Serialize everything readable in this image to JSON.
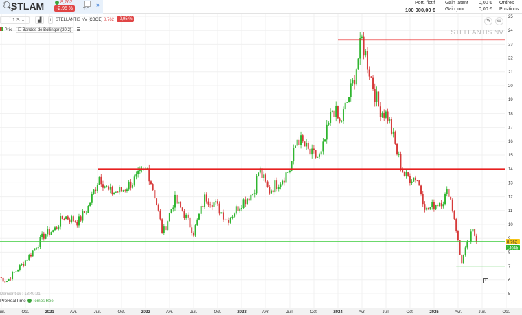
{
  "header": {
    "search_icon": "search-icon",
    "symbol": "STLAM",
    "last_price": "8,762",
    "change": "-2,95 %",
    "to_label": "T.O.",
    "portfolio_label": "Port. fictif",
    "portfolio_value": "100 000,00 €",
    "gain_latent_label": "Gain latent",
    "gain_latent_value": "0,00 €",
    "gain_jour_label": "Gain jour",
    "gain_jour_value": "0,00 €",
    "orders_label": "Ordres",
    "positions_label": "Positions"
  },
  "toolbar": {
    "period": "1 S",
    "instrument": "STELLANTIS NV [CBOE]",
    "price": "8,762",
    "change": "-2,95 %"
  },
  "indicators": {
    "prix": "Prix",
    "bollinger": "Bandes de Bollinger (20 2)"
  },
  "watermark": "STELLANTIS NV",
  "footer": {
    "last_tick": "Dernier tick : 13:40:21",
    "brand": "ProRealTime",
    "realtime": "Temps Réel"
  },
  "colors": {
    "up": "#2fb52f",
    "down": "#d63a3a",
    "resistance": "#e82020",
    "support": "#3ccc3c",
    "price_badge": "#f5c518"
  },
  "chart_data": {
    "type": "candlestick",
    "interval": "weekly",
    "ylim": [
      4.5,
      25.5
    ],
    "yticks": [
      5,
      6,
      7,
      8,
      9,
      10,
      11,
      12,
      13,
      14,
      15,
      16,
      17,
      18,
      19,
      20,
      21,
      22,
      23,
      24,
      25
    ],
    "xticks": [
      {
        "d": 2020.5,
        "l": "Juil."
      },
      {
        "d": 2020.75,
        "l": "Oct."
      },
      {
        "d": 2021,
        "l": "2021"
      },
      {
        "d": 2021.25,
        "l": "Avr."
      },
      {
        "d": 2021.5,
        "l": "Juil."
      },
      {
        "d": 2021.75,
        "l": "Oct."
      },
      {
        "d": 2022,
        "l": "2022"
      },
      {
        "d": 2022.25,
        "l": "Avr."
      },
      {
        "d": 2022.5,
        "l": "Juil."
      },
      {
        "d": 2022.75,
        "l": "Oct."
      },
      {
        "d": 2023,
        "l": "2023"
      },
      {
        "d": 2023.25,
        "l": "Avr."
      },
      {
        "d": 2023.5,
        "l": "Juil."
      },
      {
        "d": 2023.75,
        "l": "Oct."
      },
      {
        "d": 2024,
        "l": "2024"
      },
      {
        "d": 2024.25,
        "l": "Avr."
      },
      {
        "d": 2024.5,
        "l": "Juil."
      },
      {
        "d": 2024.75,
        "l": "Oct."
      },
      {
        "d": 2025,
        "l": "2025"
      },
      {
        "d": 2025.25,
        "l": "Avr."
      },
      {
        "d": 2025.5,
        "l": "Juil."
      },
      {
        "d": 2025.75,
        "l": "Oct."
      }
    ],
    "close_path": [
      [
        2020.48,
        6.2
      ],
      [
        2020.55,
        5.9
      ],
      [
        2020.7,
        7
      ],
      [
        2020.82,
        8
      ],
      [
        2020.95,
        9.3
      ],
      [
        2021.05,
        9.6
      ],
      [
        2021.15,
        10.6
      ],
      [
        2021.3,
        10.2
      ],
      [
        2021.4,
        11.2
      ],
      [
        2021.52,
        13.5
      ],
      [
        2021.62,
        12.3
      ],
      [
        2021.75,
        12.4
      ],
      [
        2021.85,
        13
      ],
      [
        2022.02,
        14
      ],
      [
        2022.1,
        12
      ],
      [
        2022.18,
        9.3
      ],
      [
        2022.3,
        11.8
      ],
      [
        2022.4,
        10.8
      ],
      [
        2022.5,
        9.4
      ],
      [
        2022.62,
        12
      ],
      [
        2022.72,
        11.5
      ],
      [
        2022.85,
        10.3
      ],
      [
        2023.0,
        11.6
      ],
      [
        2023.12,
        12.3
      ],
      [
        2023.18,
        14
      ],
      [
        2023.28,
        12.4
      ],
      [
        2023.42,
        13.3
      ],
      [
        2023.5,
        14
      ],
      [
        2023.58,
        16.3
      ],
      [
        2023.72,
        15
      ],
      [
        2023.82,
        14.8
      ],
      [
        2023.95,
        18.5
      ],
      [
        2024.02,
        17.2
      ],
      [
        2024.15,
        20
      ],
      [
        2024.25,
        23.3
      ],
      [
        2024.33,
        21
      ],
      [
        2024.42,
        18.5
      ],
      [
        2024.52,
        17.8
      ],
      [
        2024.62,
        15
      ],
      [
        2024.7,
        13.4
      ],
      [
        2024.82,
        13.4
      ],
      [
        2024.92,
        11
      ],
      [
        2025.0,
        11.4
      ],
      [
        2025.1,
        11.8
      ],
      [
        2025.15,
        12.5
      ],
      [
        2025.22,
        10.2
      ],
      [
        2025.28,
        7.2
      ],
      [
        2025.33,
        8.2
      ],
      [
        2025.4,
        9.5
      ],
      [
        2025.46,
        8.76
      ]
    ],
    "hlines": [
      {
        "value": 23.3,
        "from": 2024.0,
        "color": "resistance"
      },
      {
        "value": 14,
        "from": 2021.5,
        "color": "resistance"
      },
      {
        "value": 8.76,
        "from": 2020.45,
        "color": "support"
      },
      {
        "value": 7.0,
        "from": 2025.23,
        "color": "support"
      }
    ],
    "last_price_label": "8,762",
    "countdown_label": "1J04h"
  }
}
